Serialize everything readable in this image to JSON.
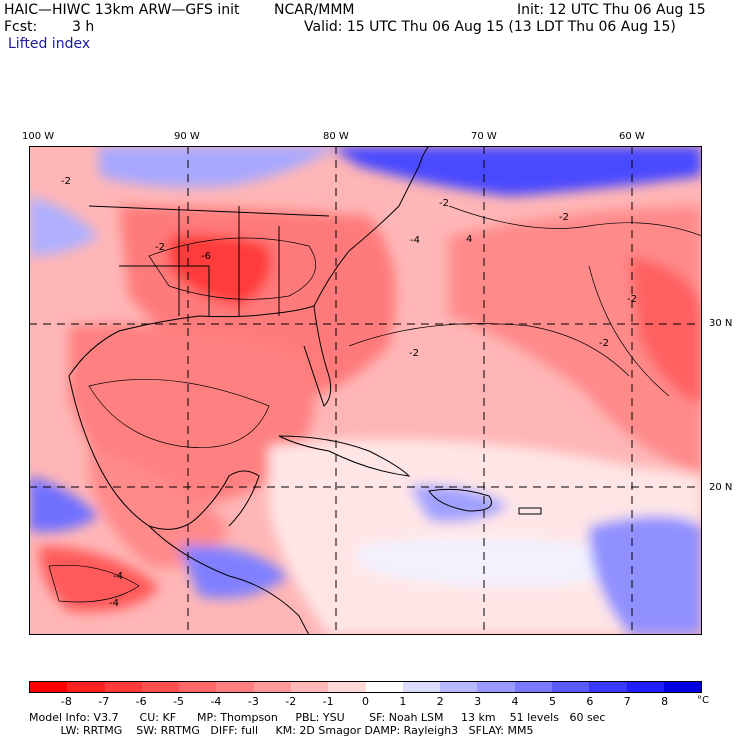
{
  "header": {
    "model": "HAIC—HIWC 13km ARW—GFS init",
    "org": "NCAR/MMM",
    "init": "Init: 12 UTC Thu 06 Aug 15",
    "fcst_label": "Fcst:",
    "fcst_value": "3 h",
    "valid": "Valid: 15 UTC Thu 06 Aug 15 (13 LDT Thu 06 Aug 15)",
    "field": "Lifted index"
  },
  "map": {
    "lon_labels": [
      "100 W",
      "90 W",
      "80 W",
      "70 W",
      "60 W"
    ],
    "lat_labels": [
      "30 N",
      "20 N"
    ],
    "contour_labels": [
      "-2",
      "-4",
      "-6",
      "4"
    ]
  },
  "colorbar": {
    "ticks": [
      "-8",
      "-7",
      "-6",
      "-5",
      "-4",
      "-3",
      "-2",
      "-1",
      "0",
      "1",
      "2",
      "3",
      "4",
      "5",
      "6",
      "7",
      "8"
    ],
    "unit": "°C",
    "colors": [
      "#ff0000",
      "#ff2020",
      "#ff3a3a",
      "#ff5050",
      "#ff6868",
      "#ff8080",
      "#ff9a9a",
      "#ffb8b8",
      "#ffd8d8",
      "#ffffff",
      "#dcdcff",
      "#b8b8ff",
      "#9a9aff",
      "#7a7aff",
      "#5a5aff",
      "#3a3aff",
      "#2020ff",
      "#0000e0"
    ]
  },
  "footer": {
    "line1": "Model Info: V3.7      CU: KF      MP: Thompson     PBL: YSU       SF: Noah LSM     13 km    51 levels   60 sec",
    "line2": "         LW: RRTMG    SW: RRTMG   DIFF: full     KM: 2D Smagor DAMP: Rayleigh3   SFLAY: MM5"
  }
}
